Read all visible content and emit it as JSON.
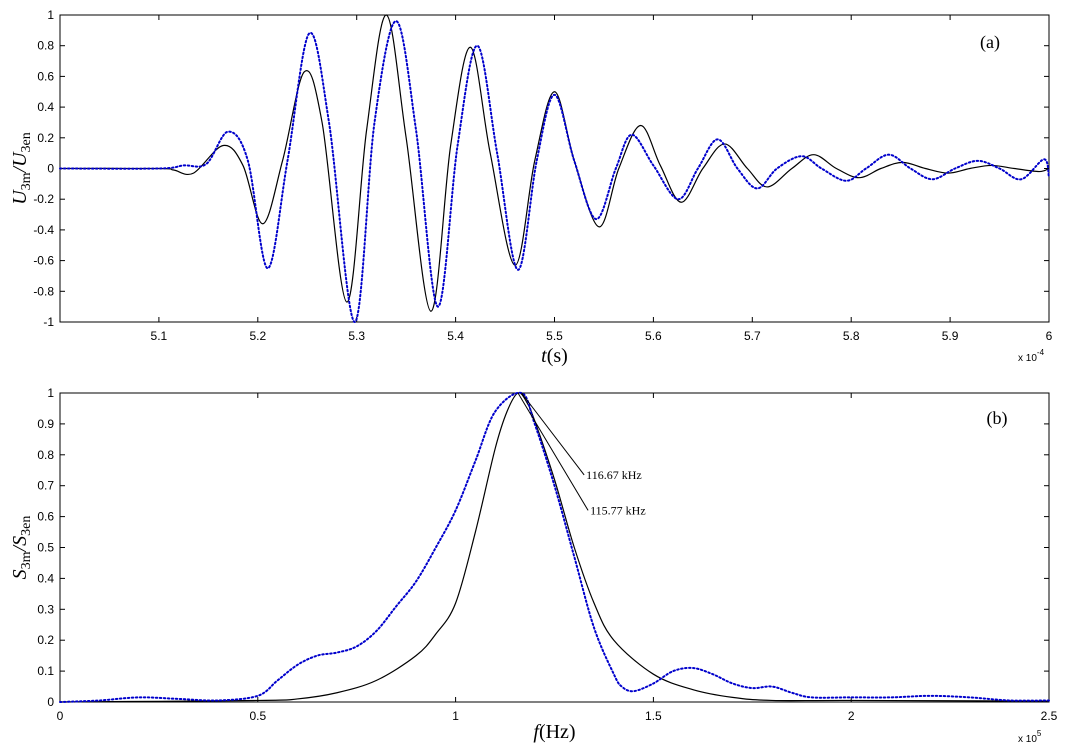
{
  "chart_data": [
    {
      "type": "line",
      "panel_label": "(a)",
      "xlabel": {
        "var": "t",
        "unit": "(s)"
      },
      "ylabel": {
        "num_var": "U",
        "num_sub": "3m",
        "den_var": "U",
        "den_sub": "3en"
      },
      "x_exponent_label": "x 10",
      "x_exponent": "-4",
      "xlim": [
        5.0,
        6.0
      ],
      "ylim": [
        -1,
        1
      ],
      "x_ticks": [
        5.1,
        5.2,
        5.3,
        5.4,
        5.5,
        5.6,
        5.7,
        5.8,
        5.9,
        6
      ],
      "x_tick_labels": [
        "5.1",
        "5.2",
        "5.3",
        "5.4",
        "5.5",
        "5.6",
        "5.7",
        "5.8",
        "5.9",
        "6"
      ],
      "y_ticks": [
        -1,
        -0.8,
        -0.6,
        -0.4,
        -0.2,
        0,
        0.2,
        0.4,
        0.6,
        0.8,
        1
      ],
      "y_tick_labels": [
        "-1",
        "-0.8",
        "-0.6",
        "-0.4",
        "-0.2",
        "0",
        "0.2",
        "0.4",
        "0.6",
        "0.8",
        "1"
      ],
      "grid": false,
      "series": [
        {
          "style": "solid",
          "color": "#000000",
          "x": [
            5.0,
            5.1,
            5.115,
            5.135,
            5.165,
            5.185,
            5.205,
            5.225,
            5.247,
            5.265,
            5.29,
            5.31,
            5.33,
            5.35,
            5.375,
            5.395,
            5.415,
            5.435,
            5.46,
            5.48,
            5.5,
            5.52,
            5.545,
            5.565,
            5.587,
            5.607,
            5.628,
            5.65,
            5.672,
            5.695,
            5.715,
            5.74,
            5.762,
            5.785,
            5.808,
            5.83,
            5.852,
            5.875,
            5.898,
            5.92,
            5.942,
            5.965,
            5.99,
            6.0
          ],
          "y": [
            0,
            0,
            -0.01,
            -0.03,
            0.15,
            0.02,
            -0.36,
            0.05,
            0.63,
            0.3,
            -0.87,
            0.25,
            1.0,
            0.2,
            -0.93,
            0.15,
            0.79,
            0.1,
            -0.63,
            0.05,
            0.5,
            0.05,
            -0.38,
            0.0,
            0.28,
            0.02,
            -0.22,
            0.0,
            0.16,
            0.0,
            -0.12,
            0.0,
            0.09,
            0.0,
            -0.06,
            0.0,
            0.04,
            0.0,
            -0.03,
            0.0,
            0.02,
            0.0,
            -0.02,
            0.0
          ]
        },
        {
          "style": "dotted",
          "color": "#0000cc",
          "x": [
            5.0,
            5.1,
            5.125,
            5.148,
            5.17,
            5.19,
            5.21,
            5.23,
            5.252,
            5.272,
            5.298,
            5.318,
            5.34,
            5.36,
            5.382,
            5.402,
            5.422,
            5.442,
            5.463,
            5.482,
            5.5,
            5.52,
            5.542,
            5.562,
            5.578,
            5.6,
            5.625,
            5.645,
            5.665,
            5.685,
            5.705,
            5.725,
            5.75,
            5.77,
            5.795,
            5.815,
            5.838,
            5.86,
            5.882,
            5.905,
            5.928,
            5.95,
            5.972,
            5.995,
            6.0
          ],
          "y": [
            0,
            0,
            0.02,
            0.03,
            0.24,
            0.05,
            -0.65,
            0.05,
            0.88,
            0.3,
            -1.0,
            0.3,
            0.96,
            0.25,
            -0.9,
            0.15,
            0.8,
            0.1,
            -0.66,
            0.05,
            0.48,
            0.05,
            -0.33,
            0.0,
            0.22,
            0.02,
            -0.2,
            0.0,
            0.19,
            0.0,
            -0.13,
            0.0,
            0.08,
            0.0,
            -0.08,
            0.0,
            0.09,
            0.0,
            -0.07,
            0.0,
            0.05,
            0.0,
            -0.07,
            0.06,
            -0.06
          ]
        }
      ]
    },
    {
      "type": "line",
      "panel_label": "(b)",
      "xlabel": {
        "var": "f",
        "unit": "(Hz)"
      },
      "ylabel": {
        "num_var": "S",
        "num_sub": "3m",
        "den_var": "S",
        "den_sub": "3en"
      },
      "x_exponent_label": "x 10",
      "x_exponent": "5",
      "xlim": [
        0,
        2.5
      ],
      "ylim": [
        0,
        1
      ],
      "x_ticks": [
        0,
        0.5,
        1,
        1.5,
        2,
        2.5
      ],
      "x_tick_labels": [
        "0",
        "0.5",
        "1",
        "1.5",
        "2",
        "2.5"
      ],
      "y_ticks": [
        0,
        0.1,
        0.2,
        0.3,
        0.4,
        0.5,
        0.6,
        0.7,
        0.8,
        0.9,
        1
      ],
      "y_tick_labels": [
        "0",
        "0.1",
        "0.2",
        "0.3",
        "0.4",
        "0.5",
        "0.6",
        "0.7",
        "0.8",
        "0.9",
        "1"
      ],
      "grid": false,
      "annotations": [
        {
          "text": "116.67 kHz",
          "x": 1.1667,
          "y": 1.0,
          "text_x": 1.33,
          "text_y": 0.735
        },
        {
          "text": "115.77 kHz",
          "x": 1.1577,
          "y": 1.0,
          "text_x": 1.34,
          "text_y": 0.62
        }
      ],
      "series": [
        {
          "style": "solid",
          "color": "#000000",
          "x": [
            0,
            0.5,
            0.6,
            0.7,
            0.8,
            0.9,
            0.95,
            1.0,
            1.05,
            1.1,
            1.13,
            1.1577,
            1.18,
            1.2,
            1.25,
            1.3,
            1.35,
            1.4,
            1.5,
            1.6,
            1.7,
            1.8,
            2.0,
            2.5
          ],
          "y": [
            0,
            0.005,
            0.01,
            0.03,
            0.07,
            0.15,
            0.22,
            0.32,
            0.55,
            0.82,
            0.94,
            1.0,
            0.97,
            0.91,
            0.72,
            0.5,
            0.32,
            0.2,
            0.09,
            0.04,
            0.015,
            0.005,
            0.005,
            0.003
          ]
        },
        {
          "style": "dotted",
          "color": "#0000cc",
          "x": [
            0,
            0.1,
            0.2,
            0.3,
            0.4,
            0.5,
            0.55,
            0.6,
            0.65,
            0.7,
            0.75,
            0.8,
            0.85,
            0.9,
            0.95,
            1.0,
            1.05,
            1.1,
            1.1667,
            1.2,
            1.25,
            1.3,
            1.35,
            1.4,
            1.42,
            1.45,
            1.5,
            1.55,
            1.6,
            1.65,
            1.7,
            1.75,
            1.8,
            1.85,
            1.9,
            2.0,
            2.1,
            2.2,
            2.3,
            2.4,
            2.5
          ],
          "y": [
            0,
            0.005,
            0.015,
            0.01,
            0.005,
            0.02,
            0.07,
            0.12,
            0.15,
            0.16,
            0.18,
            0.23,
            0.31,
            0.39,
            0.5,
            0.62,
            0.78,
            0.94,
            1.0,
            0.9,
            0.7,
            0.47,
            0.24,
            0.09,
            0.05,
            0.035,
            0.06,
            0.1,
            0.11,
            0.09,
            0.06,
            0.045,
            0.05,
            0.03,
            0.015,
            0.015,
            0.015,
            0.02,
            0.015,
            0.005,
            0.005
          ]
        }
      ]
    }
  ]
}
